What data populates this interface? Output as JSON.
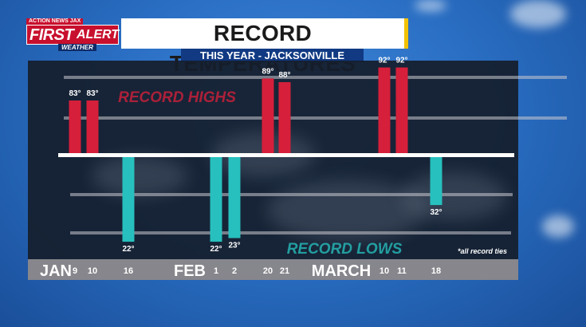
{
  "logo": {
    "tag": "ACTION NEWS JAX",
    "first": "FIRST",
    "alert": "ALERT",
    "weather": "WEATHER"
  },
  "title": "RECORD TEMPERATURES",
  "subtitle": "THIS YEAR - JACKSONVILLE",
  "colors": {
    "high": "#d61f3a",
    "low": "#27c0be",
    "baseline": "#ffffff"
  },
  "chart_data": {
    "type": "bar",
    "title": "RECORD TEMPERATURES",
    "subtitle": "THIS YEAR - JACKSONVILLE",
    "series_labels": {
      "high": "RECORD HIGHS",
      "low": "RECORD LOWS"
    },
    "note": "*all record ties",
    "highs": [
      {
        "month": "JAN",
        "day": "9",
        "value": 83,
        "label": "83°"
      },
      {
        "month": "JAN",
        "day": "10",
        "value": 83,
        "label": "83°"
      },
      {
        "month": "FEB",
        "day": "20",
        "value": 89,
        "label": "89°"
      },
      {
        "month": "FEB",
        "day": "21",
        "value": 88,
        "label": "88°"
      },
      {
        "month": "MARCH",
        "day": "10",
        "value": 92,
        "label": "92°"
      },
      {
        "month": "MARCH",
        "day": "11",
        "value": 92,
        "label": "92°"
      }
    ],
    "lows": [
      {
        "month": "JAN",
        "day": "16",
        "value": 22,
        "label": "22°"
      },
      {
        "month": "FEB",
        "day": "1",
        "value": 22,
        "label": "22°"
      },
      {
        "month": "FEB",
        "day": "2",
        "value": 23,
        "label": "23°"
      },
      {
        "month": "MARCH",
        "day": "18",
        "value": 32,
        "label": "32°"
      }
    ],
    "months": [
      "JAN",
      "FEB",
      "MARCH"
    ],
    "days": [
      "9",
      "10",
      "16",
      "1",
      "2",
      "20",
      "21",
      "10",
      "11",
      "18"
    ]
  }
}
